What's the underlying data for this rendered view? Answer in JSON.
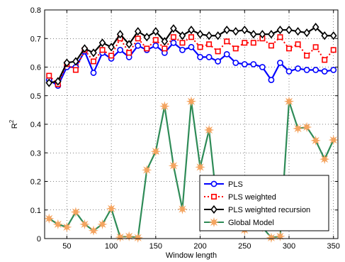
{
  "chart_data": {
    "type": "line",
    "xlabel": "Window length",
    "ylabel": "R",
    "ylabel_superscript": "2",
    "xlim": [
      25,
      355
    ],
    "ylim": [
      0,
      0.8
    ],
    "xticks": [
      50,
      100,
      150,
      200,
      250,
      300,
      350
    ],
    "yticks": [
      0,
      0.1,
      0.2,
      0.3,
      0.4,
      0.5,
      0.6,
      0.7,
      0.8
    ],
    "xtick_labels": [
      "50",
      "100",
      "150",
      "200",
      "250",
      "300",
      "350"
    ],
    "ytick_labels": [
      "0",
      "0.1",
      "0.2",
      "0.3",
      "0.4",
      "0.5",
      "0.6",
      "0.7",
      "0.8"
    ],
    "grid": true,
    "legend_position": "bottom-right",
    "x": [
      30,
      40,
      50,
      60,
      70,
      80,
      90,
      100,
      110,
      120,
      130,
      140,
      150,
      160,
      170,
      180,
      190,
      200,
      210,
      220,
      230,
      240,
      250,
      260,
      270,
      280,
      290,
      300,
      310,
      320,
      330,
      340,
      350
    ],
    "series": [
      {
        "name": "PLS",
        "color": "#0000ff",
        "line_style": "solid",
        "marker": "circle",
        "values": [
          0.555,
          0.535,
          0.6,
          0.6,
          0.655,
          0.58,
          0.65,
          0.63,
          0.66,
          0.635,
          0.675,
          0.66,
          0.675,
          0.65,
          0.685,
          0.66,
          0.67,
          0.635,
          0.635,
          0.62,
          0.645,
          0.615,
          0.61,
          0.61,
          0.6,
          0.555,
          0.615,
          0.585,
          0.595,
          0.59,
          0.59,
          0.585,
          0.59
        ]
      },
      {
        "name": "PLS weighted",
        "color": "#ff0000",
        "line_style": "dotted",
        "marker": "square",
        "values": [
          0.57,
          0.54,
          0.61,
          0.59,
          0.66,
          0.62,
          0.66,
          0.64,
          0.7,
          0.65,
          0.7,
          0.665,
          0.695,
          0.665,
          0.705,
          0.685,
          0.705,
          0.67,
          0.68,
          0.655,
          0.69,
          0.665,
          0.685,
          0.685,
          0.7,
          0.675,
          0.705,
          0.665,
          0.68,
          0.64,
          0.67,
          0.625,
          0.66
        ]
      },
      {
        "name": "PLS weighted recursion",
        "color": "#000000",
        "line_style": "solid",
        "marker": "diamond",
        "values": [
          0.545,
          0.55,
          0.615,
          0.62,
          0.665,
          0.65,
          0.685,
          0.67,
          0.715,
          0.68,
          0.725,
          0.705,
          0.725,
          0.69,
          0.735,
          0.71,
          0.73,
          0.715,
          0.71,
          0.71,
          0.73,
          0.725,
          0.73,
          0.715,
          0.715,
          0.715,
          0.73,
          0.73,
          0.725,
          0.72,
          0.74,
          0.71,
          0.71
        ]
      },
      {
        "name": "Global Model",
        "color": "#2e8b57",
        "line_style": "solid",
        "marker": "star",
        "marker_color": "#f4a460",
        "values": [
          0.07,
          0.05,
          0.04,
          0.093,
          0.05,
          0.028,
          0.05,
          0.105,
          0.005,
          0.008,
          0.003,
          0.24,
          0.305,
          0.463,
          0.255,
          0.103,
          0.48,
          0.25,
          0.38,
          0.09,
          0.13,
          0.05,
          0.03,
          0.1,
          0.04,
          0.003,
          0.008,
          0.48,
          0.385,
          0.39,
          0.343,
          0.278,
          0.345
        ]
      }
    ]
  }
}
